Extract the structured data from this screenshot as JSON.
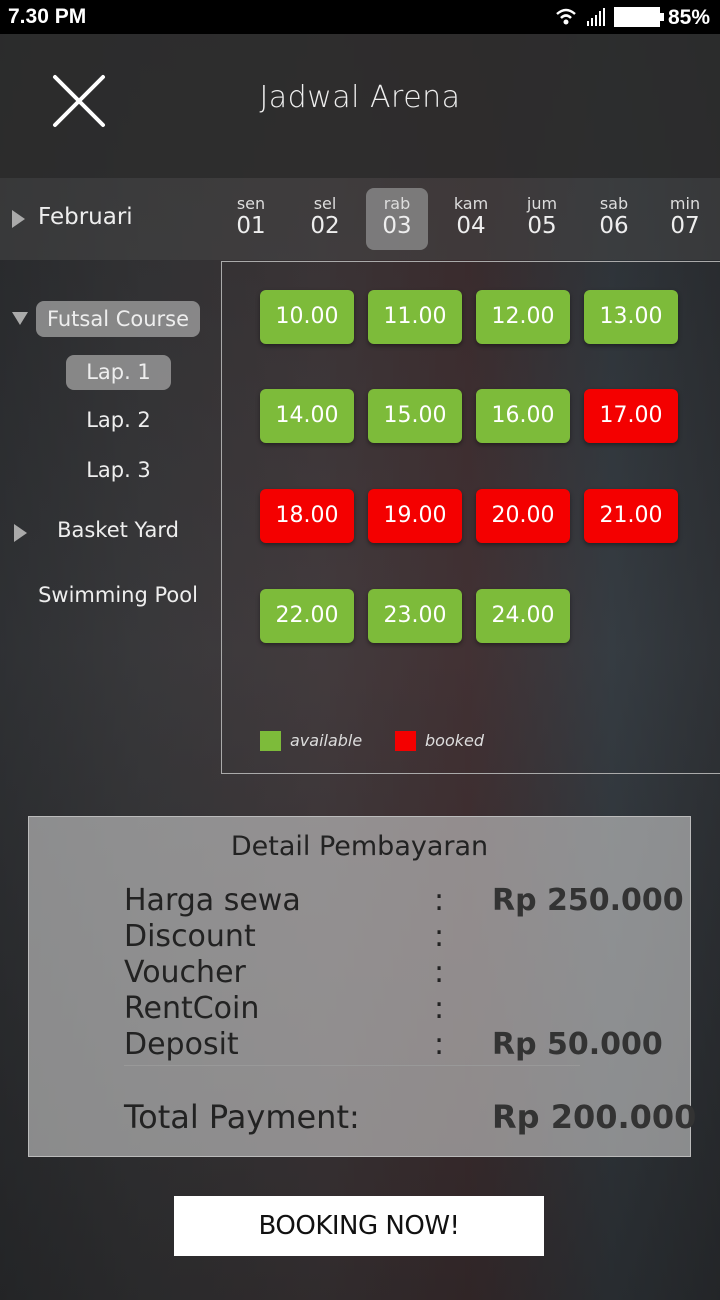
{
  "status_bar": {
    "time": "7.30 PM",
    "battery": "85%",
    "icons": [
      "wifi-icon",
      "signal-icon",
      "battery-icon"
    ]
  },
  "header": {
    "title": "Jadwal Arena",
    "close_icon": "close-icon"
  },
  "month": "Februari",
  "days": [
    {
      "name": "sen",
      "date": "01"
    },
    {
      "name": "sel",
      "date": "02"
    },
    {
      "name": "rab",
      "date": "03",
      "selected": true
    },
    {
      "name": "kam",
      "date": "04"
    },
    {
      "name": "jum",
      "date": "05"
    },
    {
      "name": "sab",
      "date": "06"
    },
    {
      "name": "min",
      "date": "07"
    }
  ],
  "sidebar": {
    "category": "Futsal Course",
    "courts": [
      "Lap. 1",
      "Lap. 2",
      "Lap. 3"
    ],
    "selected_court": "Lap. 1",
    "others": [
      "Basket Yard",
      "Swimming Pool"
    ]
  },
  "slots": [
    {
      "time": "10.00",
      "status": "available"
    },
    {
      "time": "11.00",
      "status": "available"
    },
    {
      "time": "12.00",
      "status": "available"
    },
    {
      "time": "13.00",
      "status": "available"
    },
    {
      "time": "14.00",
      "status": "available"
    },
    {
      "time": "15.00",
      "status": "available"
    },
    {
      "time": "16.00",
      "status": "available"
    },
    {
      "time": "17.00",
      "status": "booked"
    },
    {
      "time": "18.00",
      "status": "booked"
    },
    {
      "time": "19.00",
      "status": "booked"
    },
    {
      "time": "20.00",
      "status": "booked"
    },
    {
      "time": "21.00",
      "status": "booked"
    },
    {
      "time": "22.00",
      "status": "available"
    },
    {
      "time": "23.00",
      "status": "available"
    },
    {
      "time": "24.00",
      "status": "available"
    }
  ],
  "legend": {
    "available": "available",
    "booked": "booked"
  },
  "colors": {
    "available": "#7dbb3a",
    "booked": "#f40000"
  },
  "payment": {
    "title": "Detail Pembayaran",
    "rows": [
      {
        "label": "Harga sewa",
        "value": "Rp 250.000"
      },
      {
        "label": "Discount",
        "value": ""
      },
      {
        "label": "Voucher",
        "value": ""
      },
      {
        "label": "RentCoin",
        "value": ""
      },
      {
        "label": "Deposit",
        "value": "Rp 50.000"
      }
    ],
    "colon": ":",
    "total_label": "Total Payment:",
    "total_value": "Rp 200.000"
  },
  "booking_button": "BOOKING NOW!"
}
